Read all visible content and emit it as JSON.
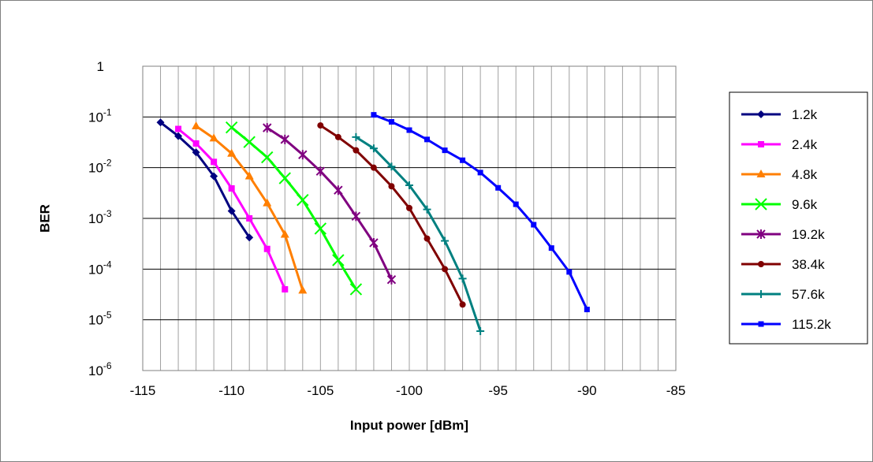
{
  "chart_data": {
    "type": "line",
    "title": "",
    "xlabel": "Input power [dBm]",
    "ylabel": "BER",
    "xlim": [
      -115,
      -85
    ],
    "ylim": [
      1e-06,
      1
    ],
    "yscale": "log",
    "x_ticks": [
      -115,
      -110,
      -105,
      -100,
      -95,
      -90,
      -85
    ],
    "x_tick_labels": [
      "-115",
      "-110",
      "-105",
      "-100",
      "-95",
      "-90",
      "-85"
    ],
    "y_ticks": [
      {
        "value": 1,
        "base": "1",
        "exp": ""
      },
      {
        "value": 0.1,
        "base": "10",
        "exp": "-1"
      },
      {
        "value": 0.01,
        "base": "10",
        "exp": "-2"
      },
      {
        "value": 0.001,
        "base": "10",
        "exp": "-3"
      },
      {
        "value": 0.0001,
        "base": "10",
        "exp": "-4"
      },
      {
        "value": 1e-05,
        "base": "10",
        "exp": "-5"
      },
      {
        "value": 1e-06,
        "base": "10",
        "exp": "-6"
      }
    ],
    "grid": true,
    "legend_position": "right",
    "series": [
      {
        "name": "1.2k",
        "color": "#000080",
        "marker": "diamond",
        "points": [
          [
            -114,
            0.078
          ],
          [
            -113,
            0.042
          ],
          [
            -112,
            0.02
          ],
          [
            -111,
            0.0068
          ],
          [
            -110,
            0.0014
          ],
          [
            -109,
            0.00042
          ]
        ]
      },
      {
        "name": "2.4k",
        "color": "#ff00ff",
        "marker": "square",
        "points": [
          [
            -113,
            0.058
          ],
          [
            -112,
            0.03
          ],
          [
            -111,
            0.013
          ],
          [
            -110,
            0.0039
          ],
          [
            -109,
            0.001
          ],
          [
            -108,
            0.00025
          ],
          [
            -107,
            4e-05
          ]
        ]
      },
      {
        "name": "4.8k",
        "color": "#ff7f00",
        "marker": "triangle",
        "points": [
          [
            -112,
            0.066
          ],
          [
            -111,
            0.038
          ],
          [
            -110,
            0.019
          ],
          [
            -109,
            0.0068
          ],
          [
            -108,
            0.002
          ],
          [
            -107,
            0.00048
          ],
          [
            -106,
            3.8e-05
          ]
        ]
      },
      {
        "name": "9.6k",
        "color": "#00ff00",
        "marker": "x",
        "points": [
          [
            -110,
            0.062
          ],
          [
            -109,
            0.032
          ],
          [
            -108,
            0.016
          ],
          [
            -107,
            0.0062
          ],
          [
            -106,
            0.0023
          ],
          [
            -105,
            0.00063
          ],
          [
            -104,
            0.00015
          ],
          [
            -103,
            4e-05
          ]
        ]
      },
      {
        "name": "19.2k",
        "color": "#800080",
        "marker": "star",
        "points": [
          [
            -108,
            0.061
          ],
          [
            -107,
            0.036
          ],
          [
            -106,
            0.018
          ],
          [
            -105,
            0.0085
          ],
          [
            -104,
            0.0036
          ],
          [
            -103,
            0.0011
          ],
          [
            -102,
            0.00033
          ],
          [
            -101,
            6.2e-05
          ]
        ]
      },
      {
        "name": "38.4k",
        "color": "#800000",
        "marker": "circle",
        "points": [
          [
            -105,
            0.068
          ],
          [
            -104,
            0.04
          ],
          [
            -103,
            0.022
          ],
          [
            -102,
            0.01
          ],
          [
            -101,
            0.0043
          ],
          [
            -100,
            0.0016
          ],
          [
            -99,
            0.0004
          ],
          [
            -98,
            0.0001
          ],
          [
            -97,
            2e-05
          ]
        ]
      },
      {
        "name": "57.6k",
        "color": "#008080",
        "marker": "plus",
        "points": [
          [
            -103,
            0.04
          ],
          [
            -102,
            0.024
          ],
          [
            -101,
            0.0105
          ],
          [
            -100,
            0.0045
          ],
          [
            -99,
            0.0015
          ],
          [
            -98,
            0.00036
          ],
          [
            -97,
            6.5e-05
          ],
          [
            -96,
            6e-06
          ]
        ]
      },
      {
        "name": "115.2k",
        "color": "#0000ff",
        "marker": "small-square",
        "points": [
          [
            -102,
            0.11
          ],
          [
            -101,
            0.08
          ],
          [
            -100,
            0.055
          ],
          [
            -99,
            0.036
          ],
          [
            -98,
            0.022
          ],
          [
            -97,
            0.014
          ],
          [
            -96,
            0.008
          ],
          [
            -95,
            0.004
          ],
          [
            -94,
            0.0019
          ],
          [
            -93,
            0.00075
          ],
          [
            -92,
            0.00026
          ],
          [
            -91,
            8.8e-05
          ],
          [
            -90,
            1.6e-05
          ]
        ]
      }
    ]
  }
}
